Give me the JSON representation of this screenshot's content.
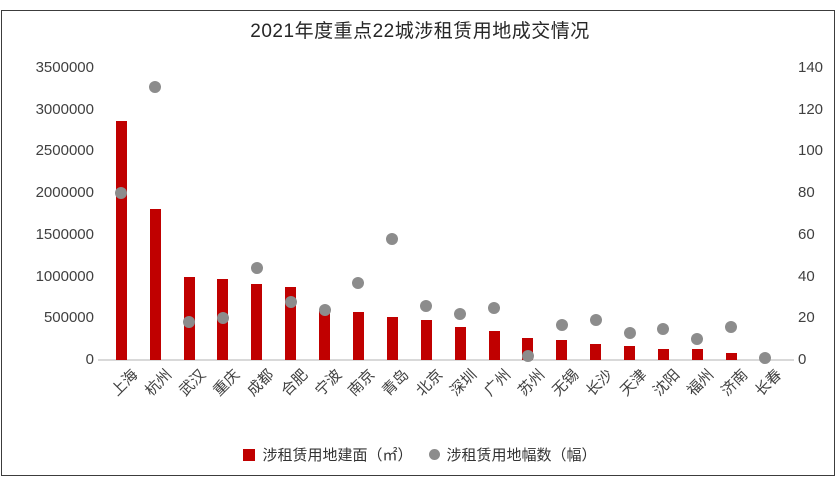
{
  "title": "2021年度重点22城涉租赁用地成交情况",
  "colors": {
    "bar": "#C00000",
    "dot": "#8C8C8C",
    "axis_line": "#D9D9D9",
    "tick_text": "#404040",
    "title_text": "#262626",
    "frame_border": "#3C3C3C"
  },
  "legend": {
    "items": [
      {
        "label": "涉租赁用地建面（㎡）",
        "marker": "square",
        "color": "#C00000"
      },
      {
        "label": "涉租赁用地幅数（幅）",
        "marker": "circle",
        "color": "#8C8C8C"
      }
    ]
  },
  "chart_data": {
    "type": "bar",
    "subtype": "bar+scatter combo, dual axis",
    "title": "2021年度重点22城涉租赁用地成交情况",
    "categories": [
      "上海",
      "杭州",
      "武汉",
      "重庆",
      "成都",
      "合肥",
      "宁波",
      "南京",
      "青岛",
      "北京",
      "深圳",
      "广州",
      "苏州",
      "无锡",
      "长沙",
      "天津",
      "沈阳",
      "福州",
      "济南",
      "长春"
    ],
    "series": [
      {
        "name": "涉租赁用地建面（㎡）",
        "type": "bar",
        "axis": "left",
        "color": "#C00000",
        "values": [
          2860000,
          1810000,
          1000000,
          970000,
          910000,
          880000,
          590000,
          570000,
          520000,
          480000,
          390000,
          350000,
          260000,
          240000,
          190000,
          170000,
          135000,
          130000,
          80000,
          0
        ]
      },
      {
        "name": "涉租赁用地幅数（幅）",
        "type": "scatter",
        "axis": "right",
        "color": "#8C8C8C",
        "values": [
          80,
          131,
          18,
          20,
          44,
          28,
          24,
          37,
          58,
          26,
          22,
          25,
          2,
          17,
          19,
          13,
          15,
          10,
          16,
          1
        ]
      }
    ],
    "left_axis": {
      "min": 0,
      "max": 3500000,
      "step": 500000,
      "ticks": [
        "0",
        "500000",
        "1000000",
        "1500000",
        "2000000",
        "2500000",
        "3000000",
        "3500000"
      ]
    },
    "right_axis": {
      "min": 0,
      "max": 140,
      "step": 20,
      "ticks": [
        "0",
        "20",
        "40",
        "60",
        "80",
        "100",
        "120",
        "140"
      ]
    },
    "grid": false,
    "legend_position": "bottom"
  }
}
